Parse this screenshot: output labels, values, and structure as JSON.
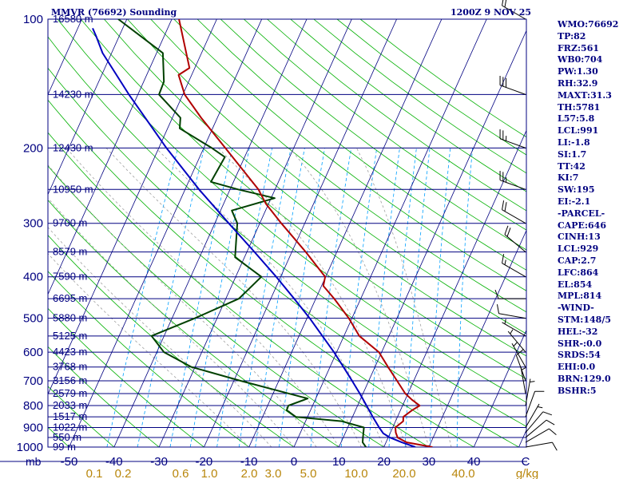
{
  "header": {
    "station_title": "MMVR (76692) Sounding",
    "time_title": "1200Z  9 NOV 25"
  },
  "indices": [
    "WMO:76692",
    "TP:82",
    "FRZ:561",
    "WB0:704",
    "PW:1.30",
    "RH:32.9",
    "MAXT:31.3",
    "TH:5781",
    "L57:5.8",
    "LCL:991",
    "LI:-1.8",
    "SI:1.7",
    "TT:42",
    "KI:7",
    "SW:195",
    "EI:-2.1",
    "-PARCEL-",
    "CAPE:646",
    "CINH:13",
    "LCL:929",
    "CAP:2.7",
    "LFC:864",
    "EL:854",
    "MPL:814",
    "-WIND-",
    "STM:148/5",
    "HEL:-32",
    "SHR-:0.0",
    "SRDS:54",
    "EHI:0.0",
    "BRN:129.0",
    "BSHR:5"
  ],
  "colors": {
    "frame": "#000080",
    "isobar": "#000080",
    "isotherm": "#000080",
    "dry_adiabat": "#00b000",
    "moist_adiabat": "#a0a0a0",
    "mixing_ratio": "#00a0ff",
    "temperature": "#b00000",
    "dewpoint": "#004000",
    "parcel": "#0000c0",
    "axis_text": "#000080",
    "mixing_text": "#b8860b",
    "wind": "#000000"
  },
  "chart_data": {
    "type": "line",
    "diagram": "skew-T log-P",
    "x_unit_label": "C",
    "y_unit_label": "mb",
    "mixing_unit_label": "g/kg",
    "xlim": [
      -50,
      50
    ],
    "ylim": [
      1000,
      100
    ],
    "pressure_ticks": [
      100,
      200,
      300,
      400,
      500,
      600,
      700,
      800,
      900,
      1000
    ],
    "temperature_ticks": [
      -50,
      -40,
      -30,
      -20,
      -10,
      0,
      10,
      20,
      30,
      40
    ],
    "mixing_ratio_labels": [
      "0.1",
      "0.2",
      "0.6",
      "1.0",
      "2.0",
      "3.0",
      "5.0",
      "10.0",
      "20.0",
      "40.0"
    ],
    "height_levels": [
      {
        "p": 100,
        "h": "16580 m"
      },
      {
        "p": 150,
        "h": "14230 m"
      },
      {
        "p": 200,
        "h": "12430 m"
      },
      {
        "p": 250,
        "h": "10950 m"
      },
      {
        "p": 300,
        "h": "9700 m"
      },
      {
        "p": 350,
        "h": "8579 m"
      },
      {
        "p": 400,
        "h": "7590 m"
      },
      {
        "p": 450,
        "h": "6695 m"
      },
      {
        "p": 500,
        "h": "5880 m"
      },
      {
        "p": 550,
        "h": "5125 m"
      },
      {
        "p": 600,
        "h": "4423 m"
      },
      {
        "p": 650,
        "h": "3768 m"
      },
      {
        "p": 700,
        "h": "3156 m"
      },
      {
        "p": 750,
        "h": "2579 m"
      },
      {
        "p": 800,
        "h": "2033 m"
      },
      {
        "p": 850,
        "h": "1517 m"
      },
      {
        "p": 900,
        "h": "1022 m"
      },
      {
        "p": 950,
        "h": "550 m"
      },
      {
        "p": 1000,
        "h": "99 m"
      }
    ],
    "temperature_profile": [
      {
        "p": 1000,
        "t": 30.8
      },
      {
        "p": 975,
        "t": 24.6
      },
      {
        "p": 950,
        "t": 22.1
      },
      {
        "p": 925,
        "t": 21.2
      },
      {
        "p": 900,
        "t": 20.6
      },
      {
        "p": 870,
        "t": 21.7
      },
      {
        "p": 850,
        "t": 21.3
      },
      {
        "p": 820,
        "t": 22.6
      },
      {
        "p": 800,
        "t": 23.8
      },
      {
        "p": 775,
        "t": 21.5
      },
      {
        "p": 750,
        "t": 19.4
      },
      {
        "p": 700,
        "t": 16.3
      },
      {
        "p": 650,
        "t": 12.9
      },
      {
        "p": 600,
        "t": 9.4
      },
      {
        "p": 550,
        "t": 3.4
      },
      {
        "p": 500,
        "t": -0.7
      },
      {
        "p": 450,
        "t": -5.9
      },
      {
        "p": 420,
        "t": -9.6
      },
      {
        "p": 400,
        "t": -10.1
      },
      {
        "p": 350,
        "t": -16.9
      },
      {
        "p": 300,
        "t": -25.2
      },
      {
        "p": 270,
        "t": -30.6
      },
      {
        "p": 250,
        "t": -33.7
      },
      {
        "p": 200,
        "t": -45.2
      },
      {
        "p": 170,
        "t": -53.6
      },
      {
        "p": 150,
        "t": -59.6
      },
      {
        "p": 135,
        "t": -62.9
      },
      {
        "p": 130,
        "t": -61.2
      },
      {
        "p": 100,
        "t": -68.4
      }
    ],
    "dewpoint_profile": [
      {
        "p": 1000,
        "t": 16.0
      },
      {
        "p": 975,
        "t": 14.8
      },
      {
        "p": 950,
        "t": 14.4
      },
      {
        "p": 900,
        "t": 13.6
      },
      {
        "p": 870,
        "t": 8.0
      },
      {
        "p": 850,
        "t": -2.6
      },
      {
        "p": 820,
        "t": -5.3
      },
      {
        "p": 800,
        "t": -5.4
      },
      {
        "p": 770,
        "t": -1.8
      },
      {
        "p": 700,
        "t": -18.5
      },
      {
        "p": 650,
        "t": -30.8
      },
      {
        "p": 600,
        "t": -38.4
      },
      {
        "p": 550,
        "t": -42.8
      },
      {
        "p": 500,
        "t": -34.9
      },
      {
        "p": 450,
        "t": -27.1
      },
      {
        "p": 400,
        "t": -24.3
      },
      {
        "p": 360,
        "t": -32.1
      },
      {
        "p": 300,
        "t": -35.0
      },
      {
        "p": 280,
        "t": -37.5
      },
      {
        "p": 262,
        "t": -29.2
      },
      {
        "p": 250,
        "t": -38.2
      },
      {
        "p": 240,
        "t": -45.0
      },
      {
        "p": 210,
        "t": -44.4
      },
      {
        "p": 200,
        "t": -48.2
      },
      {
        "p": 180,
        "t": -57.3
      },
      {
        "p": 170,
        "t": -58.2
      },
      {
        "p": 150,
        "t": -65.3
      },
      {
        "p": 140,
        "t": -65.5
      },
      {
        "p": 120,
        "t": -68.6
      },
      {
        "p": 100,
        "t": -81.9
      }
    ],
    "parcel_profile": [
      {
        "p": 1000,
        "t": 27.0
      },
      {
        "p": 975,
        "t": 23.5
      },
      {
        "p": 950,
        "t": 20.4
      },
      {
        "p": 929,
        "t": 18.5
      },
      {
        "p": 900,
        "t": 17.0
      },
      {
        "p": 850,
        "t": 14.5
      },
      {
        "p": 800,
        "t": 12.0
      },
      {
        "p": 750,
        "t": 9.3
      },
      {
        "p": 700,
        "t": 6.3
      },
      {
        "p": 650,
        "t": 3.0
      },
      {
        "p": 600,
        "t": -0.6
      },
      {
        "p": 550,
        "t": -4.8
      },
      {
        "p": 500,
        "t": -9.4
      },
      {
        "p": 450,
        "t": -14.8
      },
      {
        "p": 400,
        "t": -21.0
      },
      {
        "p": 350,
        "t": -28.3
      },
      {
        "p": 300,
        "t": -36.9
      },
      {
        "p": 250,
        "t": -46.9
      },
      {
        "p": 200,
        "t": -58.3
      },
      {
        "p": 150,
        "t": -72.0
      },
      {
        "p": 120,
        "t": -82.0
      },
      {
        "p": 110,
        "t": -85.0
      },
      {
        "p": 105,
        "t": -86.7
      }
    ],
    "wind_barbs": [
      {
        "p": 1000,
        "dir": 80,
        "spd": 10
      },
      {
        "p": 975,
        "dir": 60,
        "spd": 10
      },
      {
        "p": 950,
        "dir": 50,
        "spd": 10
      },
      {
        "p": 925,
        "dir": 40,
        "spd": 10
      },
      {
        "p": 900,
        "dir": 30,
        "spd": 5
      },
      {
        "p": 850,
        "dir": 20,
        "spd": 10
      },
      {
        "p": 800,
        "dir": 10,
        "spd": 5
      },
      {
        "p": 750,
        "dir": 350,
        "spd": 5
      },
      {
        "p": 700,
        "dir": 340,
        "spd": 10
      },
      {
        "p": 650,
        "dir": 330,
        "spd": 5
      },
      {
        "p": 600,
        "dir": 320,
        "spd": 5
      },
      {
        "p": 550,
        "dir": 300,
        "spd": 5
      },
      {
        "p": 500,
        "dir": 280,
        "spd": 10
      },
      {
        "p": 450,
        "dir": 270,
        "spd": 10
      },
      {
        "p": 400,
        "dir": 300,
        "spd": 15
      },
      {
        "p": 350,
        "dir": 310,
        "spd": 20
      },
      {
        "p": 300,
        "dir": 300,
        "spd": 20
      },
      {
        "p": 250,
        "dir": 290,
        "spd": 25
      },
      {
        "p": 200,
        "dir": 290,
        "spd": 25
      },
      {
        "p": 150,
        "dir": 290,
        "spd": 30
      },
      {
        "p": 100,
        "dir": 300,
        "spd": 20
      }
    ]
  }
}
